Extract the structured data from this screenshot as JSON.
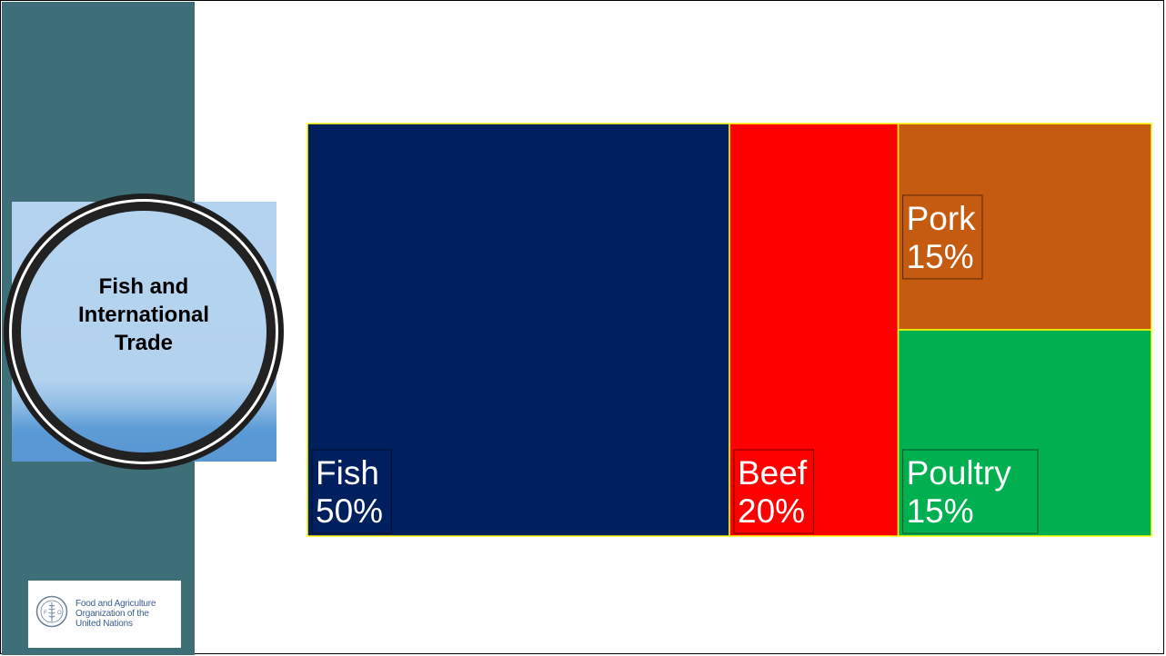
{
  "sidebar": {
    "title": "Fish and International Trade",
    "logo": {
      "emblem": "fao-emblem-icon",
      "lines": [
        "Food and Agriculture",
        "Organization of the",
        "United Nations"
      ]
    }
  },
  "colors": {
    "sidebar": "#3e6e78",
    "fish": "#001f5f",
    "beef": "#ff0000",
    "pork": "#c55a11",
    "poultry": "#00b050",
    "tile_border": "#ffff00"
  },
  "chart_data": {
    "type": "treemap",
    "items": [
      {
        "name": "Fish",
        "value": 50,
        "label": "50%",
        "color": "#001f5f"
      },
      {
        "name": "Beef",
        "value": 20,
        "label": "20%",
        "color": "#ff0000"
      },
      {
        "name": "Pork",
        "value": 15,
        "label": "15%",
        "color": "#c55a11"
      },
      {
        "name": "Poultry",
        "value": 15,
        "label": "15%",
        "color": "#00b050"
      }
    ]
  }
}
